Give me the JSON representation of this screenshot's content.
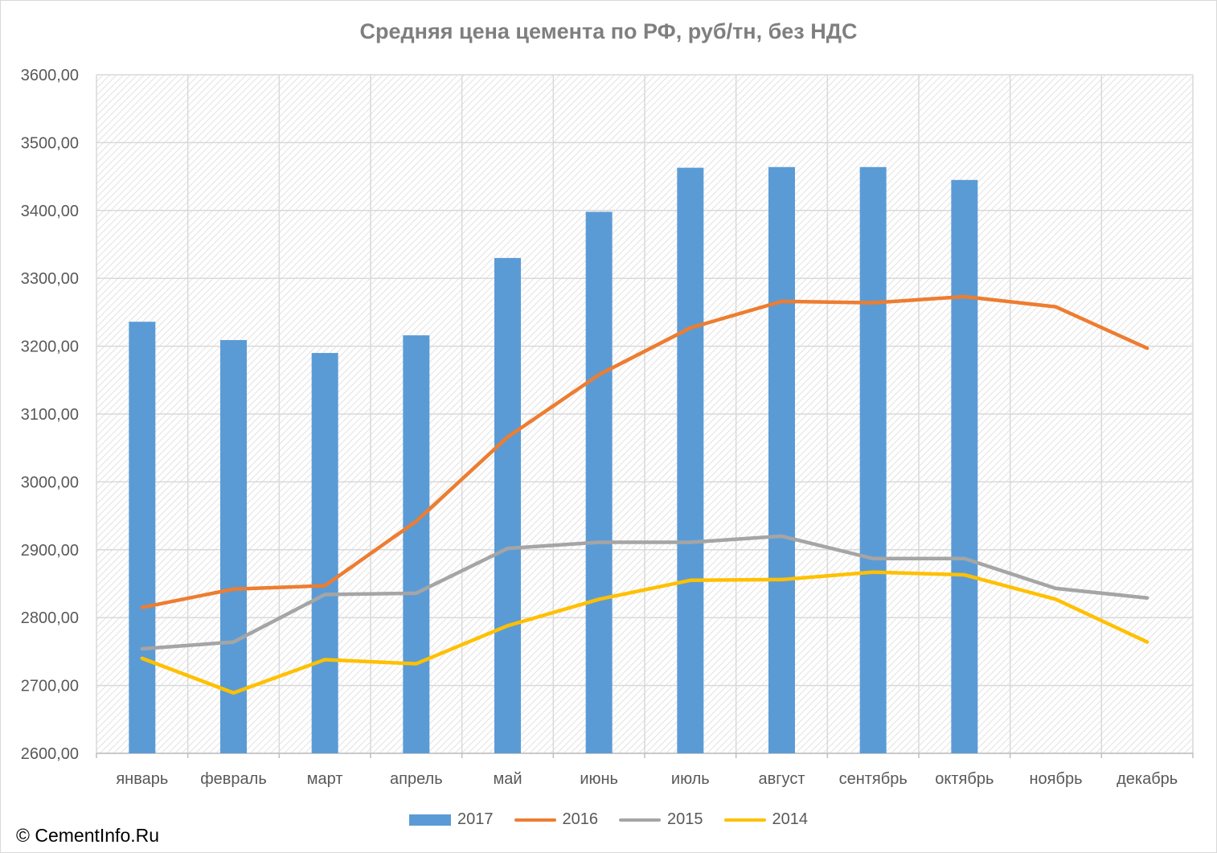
{
  "title": "Средняя цена цемента по РФ, руб/тн, без НДС",
  "copyright": "© CementInfo.Ru",
  "chart_data": {
    "type": "bar",
    "title": "Средняя цена цемента по РФ, руб/тн, без НДС",
    "xlabel": "",
    "ylabel": "",
    "ylim": [
      2600,
      3600
    ],
    "ytick_step": 100,
    "ytick_labels": [
      "2600,00",
      "2700,00",
      "2800,00",
      "2900,00",
      "3000,00",
      "3100,00",
      "3200,00",
      "3300,00",
      "3400,00",
      "3500,00",
      "3600,00"
    ],
    "grid": true,
    "legend_position": "bottom",
    "categories": [
      "январь",
      "февраль",
      "март",
      "апрель",
      "май",
      "июнь",
      "июль",
      "август",
      "сентябрь",
      "октябрь",
      "ноябрь",
      "декабрь"
    ],
    "series": [
      {
        "name": "2017",
        "type": "bar",
        "color": "#5b9bd5",
        "values": [
          3236,
          3209,
          3190,
          3216,
          3330,
          3398,
          3463,
          3464,
          3464,
          3445,
          null,
          null
        ]
      },
      {
        "name": "2016",
        "type": "line",
        "color": "#ed7d31",
        "values": [
          2815,
          2842,
          2847,
          2942,
          3066,
          3158,
          3227,
          3266,
          3264,
          3273,
          3258,
          3197
        ]
      },
      {
        "name": "2015",
        "type": "line",
        "color": "#a5a5a5",
        "values": [
          2754,
          2764,
          2834,
          2836,
          2902,
          2911,
          2911,
          2920,
          2887,
          2887,
          2843,
          2829
        ]
      },
      {
        "name": "2014",
        "type": "line",
        "color": "#ffc000",
        "values": [
          2740,
          2689,
          2738,
          2732,
          2788,
          2827,
          2855,
          2856,
          2867,
          2863,
          2827,
          2764
        ]
      }
    ]
  }
}
